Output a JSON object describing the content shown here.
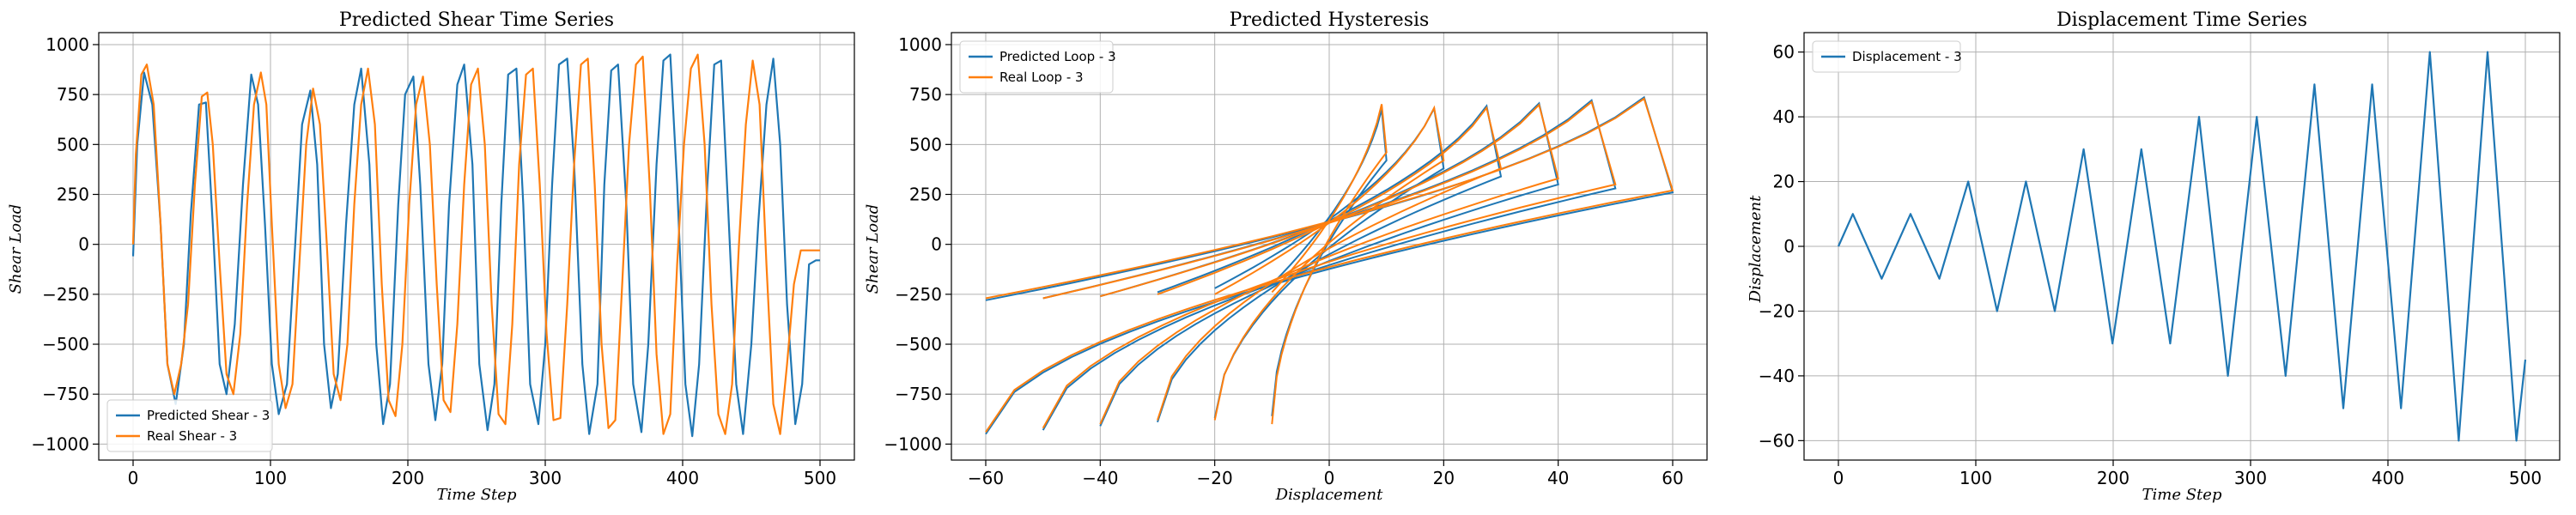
{
  "chart_data": [
    {
      "type": "line",
      "title": "Predicted Shear Time Series",
      "xlabel": "Time Step",
      "ylabel": "Shear Load",
      "xlim": [
        -25,
        525
      ],
      "ylim": [
        -1080,
        1060
      ],
      "xticks": [
        0,
        100,
        200,
        300,
        400,
        500
      ],
      "yticks": [
        -1000,
        -750,
        -500,
        -250,
        0,
        250,
        500,
        750,
        1000
      ],
      "xtick_labels": [
        "0",
        "100",
        "200",
        "300",
        "400",
        "500"
      ],
      "ytick_labels": [
        "−1000",
        "−750",
        "−500",
        "−250",
        "0",
        "250",
        "500",
        "750",
        "1000"
      ],
      "grid": true,
      "legend_position": "lower-left",
      "series": [
        {
          "name": "Predicted Shear - 3",
          "color": "#1f77b4",
          "x": [
            0,
            3,
            8,
            14,
            20,
            25,
            31,
            37,
            42,
            48,
            53,
            58,
            63,
            68,
            74,
            80,
            86,
            91,
            96,
            101,
            106,
            112,
            118,
            123,
            129,
            134,
            139,
            144,
            149,
            155,
            161,
            166,
            172,
            177,
            182,
            187,
            193,
            198,
            204,
            209,
            215,
            220,
            225,
            230,
            236,
            241,
            247,
            252,
            258,
            263,
            268,
            273,
            279,
            284,
            289,
            295,
            300,
            305,
            310,
            316,
            321,
            327,
            332,
            338,
            343,
            348,
            353,
            359,
            364,
            370,
            375,
            381,
            386,
            391,
            396,
            402,
            407,
            412,
            418,
            423,
            428,
            433,
            439,
            444,
            450,
            455,
            461,
            466,
            471,
            476,
            482,
            487,
            492,
            497,
            500
          ],
          "y": [
            -60,
            500,
            860,
            700,
            100,
            -600,
            -800,
            -500,
            150,
            700,
            710,
            100,
            -600,
            -750,
            -400,
            300,
            850,
            700,
            100,
            -600,
            -850,
            -700,
            0,
            600,
            770,
            400,
            -500,
            -820,
            -650,
            100,
            700,
            880,
            400,
            -500,
            -900,
            -700,
            200,
            750,
            840,
            300,
            -600,
            -880,
            -600,
            200,
            800,
            900,
            400,
            -600,
            -930,
            -700,
            200,
            850,
            880,
            200,
            -700,
            -900,
            -500,
            300,
            900,
            930,
            400,
            -600,
            -950,
            -700,
            300,
            870,
            900,
            200,
            -700,
            -940,
            -500,
            400,
            920,
            950,
            300,
            -700,
            -960,
            -600,
            300,
            900,
            920,
            200,
            -700,
            -950,
            -500,
            100,
            700,
            930,
            500,
            -300,
            -900,
            -700,
            -100,
            -80,
            -80
          ]
        },
        {
          "name": "Real Shear - 3",
          "color": "#ff7f0e",
          "x": [
            0,
            2,
            6,
            10,
            15,
            20,
            25,
            30,
            35,
            40,
            45,
            50,
            54,
            58,
            63,
            68,
            73,
            78,
            83,
            88,
            93,
            97,
            101,
            106,
            111,
            116,
            121,
            126,
            131,
            136,
            141,
            146,
            151,
            156,
            161,
            166,
            171,
            176,
            181,
            186,
            191,
            196,
            201,
            206,
            211,
            216,
            221,
            226,
            231,
            236,
            241,
            246,
            251,
            256,
            261,
            266,
            271,
            276,
            281,
            286,
            291,
            296,
            301,
            306,
            311,
            316,
            321,
            326,
            331,
            336,
            341,
            346,
            351,
            356,
            361,
            366,
            371,
            376,
            381,
            386,
            391,
            396,
            401,
            406,
            411,
            416,
            421,
            426,
            431,
            436,
            441,
            446,
            451,
            456,
            461,
            466,
            471,
            476,
            481,
            486,
            491,
            496,
            500
          ],
          "y": [
            0,
            450,
            850,
            900,
            700,
            100,
            -600,
            -750,
            -600,
            -300,
            300,
            740,
            760,
            500,
            -100,
            -650,
            -750,
            -450,
            200,
            700,
            860,
            700,
            100,
            -600,
            -820,
            -700,
            -100,
            500,
            780,
            600,
            0,
            -650,
            -780,
            -500,
            200,
            700,
            880,
            600,
            -200,
            -780,
            -860,
            -500,
            200,
            700,
            840,
            500,
            -200,
            -780,
            -840,
            -400,
            300,
            800,
            880,
            500,
            -300,
            -850,
            -900,
            -400,
            400,
            850,
            880,
            300,
            -450,
            -880,
            -870,
            -300,
            400,
            900,
            930,
            300,
            -500,
            -920,
            -880,
            -200,
            500,
            900,
            940,
            300,
            -550,
            -950,
            -850,
            -100,
            500,
            880,
            950,
            500,
            -300,
            -850,
            -950,
            -700,
            0,
            600,
            920,
            700,
            -100,
            -800,
            -950,
            -600,
            -200,
            -30,
            -30,
            -30,
            -30
          ]
        }
      ]
    },
    {
      "type": "line",
      "title": "Predicted Hysteresis",
      "xlabel": "Displacement",
      "ylabel": "Shear Load",
      "xlim": [
        -66,
        66
      ],
      "ylim": [
        -1080,
        1060
      ],
      "xticks": [
        -60,
        -40,
        -20,
        0,
        20,
        40,
        60
      ],
      "yticks": [
        -1000,
        -750,
        -500,
        -250,
        0,
        250,
        500,
        750,
        1000
      ],
      "xtick_labels": [
        "−60",
        "−40",
        "−20",
        "0",
        "20",
        "40",
        "60"
      ],
      "ytick_labels": [
        "−1000",
        "−750",
        "−500",
        "−250",
        "0",
        "250",
        "500",
        "750",
        "1000"
      ],
      "grid": true,
      "legend_position": "top-left",
      "series": [
        {
          "name": "Predicted Loop - 3",
          "color": "#1f77b4",
          "loops": [
            {
              "amp": 10,
              "peak": 860,
              "ypos": 420,
              "yneg": -200
            },
            {
              "amp": 20,
              "peak": 870,
              "ypos": 380,
              "yneg": -220
            },
            {
              "amp": 30,
              "peak": 890,
              "ypos": 340,
              "yneg": -240
            },
            {
              "amp": 40,
              "peak": 910,
              "ypos": 300,
              "yneg": -260
            },
            {
              "amp": 50,
              "peak": 930,
              "ypos": 280,
              "yneg": -270
            },
            {
              "amp": 60,
              "peak": 950,
              "ypos": 260,
              "yneg": -280
            }
          ]
        },
        {
          "name": "Real Loop - 3",
          "color": "#ff7f0e",
          "loops": [
            {
              "amp": 10,
              "peak": 900,
              "ypos": 460,
              "yneg": -240
            },
            {
              "amp": 20,
              "peak": 880,
              "ypos": 420,
              "yneg": -250
            },
            {
              "amp": 30,
              "peak": 880,
              "ypos": 380,
              "yneg": -250
            },
            {
              "amp": 40,
              "peak": 900,
              "ypos": 330,
              "yneg": -260
            },
            {
              "amp": 50,
              "peak": 920,
              "ypos": 300,
              "yneg": -270
            },
            {
              "amp": 60,
              "peak": 940,
              "ypos": 270,
              "yneg": -270
            }
          ]
        }
      ]
    },
    {
      "type": "line",
      "title": "Displacement Time Series",
      "xlabel": "Time Step",
      "ylabel": "Displacement",
      "xlim": [
        -25,
        525
      ],
      "ylim": [
        -66,
        66
      ],
      "xticks": [
        0,
        100,
        200,
        300,
        400,
        500
      ],
      "yticks": [
        -60,
        -40,
        -20,
        0,
        20,
        40,
        60
      ],
      "xtick_labels": [
        "0",
        "100",
        "200",
        "300",
        "400",
        "500"
      ],
      "ytick_labels": [
        "−60",
        "−40",
        "−20",
        "0",
        "20",
        "40",
        "60"
      ],
      "grid": true,
      "legend_position": "top-left",
      "series": [
        {
          "name": "Displacement - 3",
          "color": "#1f77b4",
          "x": [
            0,
            10.5,
            31.5,
            52.5,
            73.5,
            94.5,
            115.5,
            136.5,
            157.5,
            178.5,
            199.5,
            220.5,
            241.5,
            262.5,
            283.5,
            304.5,
            325.5,
            346.5,
            367.5,
            388.5,
            409.5,
            430.5,
            451.5,
            472.5,
            493.5,
            500
          ],
          "y": [
            0,
            10,
            -10,
            10,
            -10,
            20,
            -20,
            20,
            -20,
            30,
            -30,
            30,
            -30,
            40,
            -40,
            40,
            -40,
            50,
            -50,
            50,
            -50,
            60,
            -60,
            60,
            -60,
            -35
          ]
        }
      ]
    }
  ]
}
